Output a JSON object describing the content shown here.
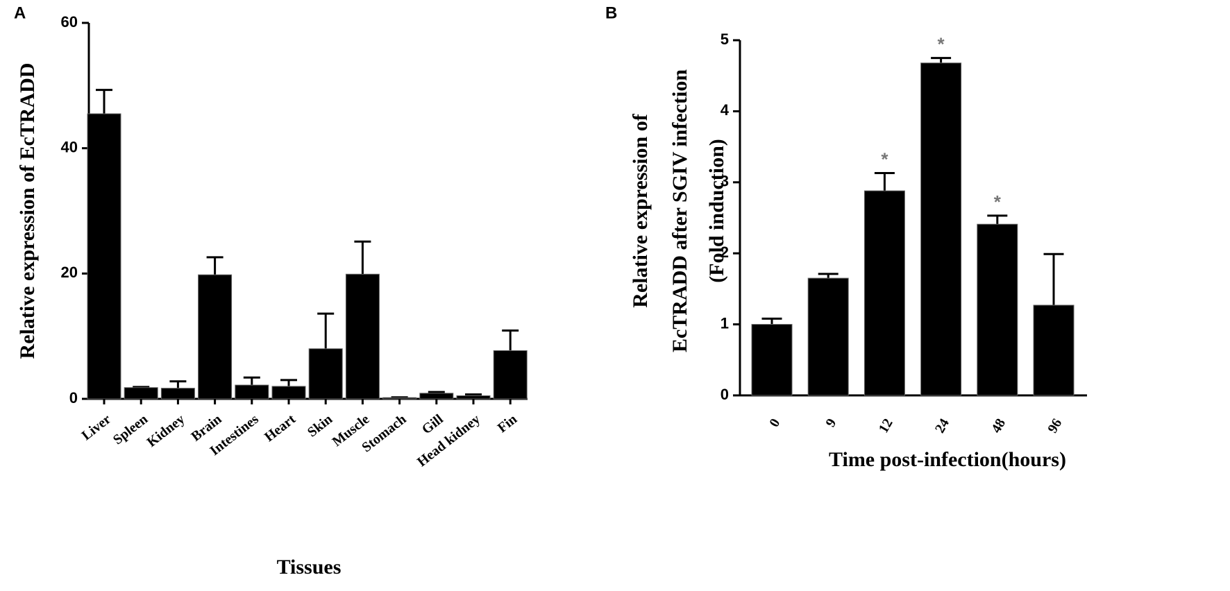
{
  "chart_data": [
    {
      "type": "bar",
      "panel": "A",
      "y_label": [
        "Relative expression of EcTRADD"
      ],
      "x_label": "Tissues",
      "categories": [
        "Liver",
        "Spleen",
        "Kidney",
        "Brain",
        "Intestines",
        "Heart",
        "Skin",
        "Muscle",
        "Stomach",
        "Gill",
        "Head kidney",
        "Fin"
      ],
      "values": [
        45.5,
        1.8,
        1.7,
        19.8,
        2.2,
        2.0,
        8.0,
        19.9,
        0.2,
        0.9,
        0.5,
        7.7
      ],
      "errors": [
        3.8,
        0.1,
        1.1,
        2.8,
        1.2,
        1.0,
        5.6,
        5.2,
        0.05,
        0.2,
        0.2,
        3.2
      ],
      "color": "#000000",
      "ylim": [
        0,
        60
      ],
      "yticks": [
        0,
        20,
        40,
        60
      ]
    },
    {
      "type": "bar",
      "panel": "B",
      "y_label": [
        "Relative expression of",
        "EcTRADD after SGIV infection",
        "(Fold induction)"
      ],
      "x_label": "Time post-infection(hours)",
      "categories": [
        "0",
        "9",
        "12",
        "24",
        "48",
        "96"
      ],
      "values": [
        1.0,
        1.65,
        2.88,
        4.68,
        2.41,
        1.27
      ],
      "errors": [
        0.08,
        0.06,
        0.25,
        0.07,
        0.12,
        0.72
      ],
      "annotations": [
        {
          "label": "*",
          "category": "12"
        },
        {
          "label": "*",
          "category": "24"
        },
        {
          "label": "*",
          "category": "48"
        }
      ],
      "color": "#000000",
      "ylim": [
        0,
        5
      ],
      "yticks": [
        0,
        1,
        2,
        3,
        4,
        5
      ]
    }
  ]
}
